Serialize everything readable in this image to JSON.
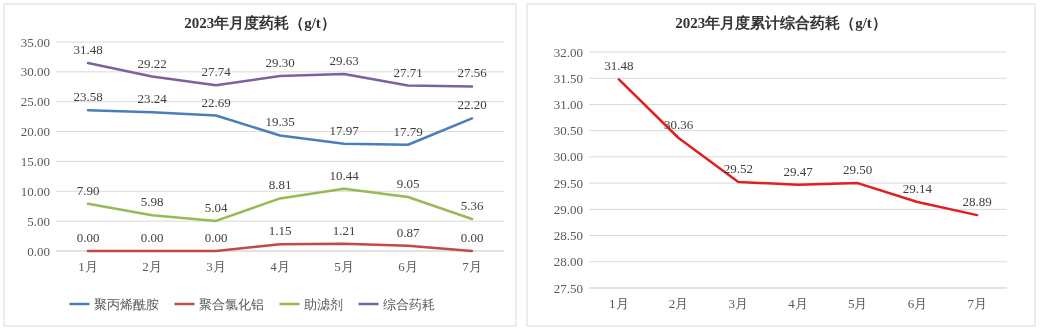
{
  "chart_data": [
    {
      "type": "line",
      "title": "2023年月度药耗（g/t）",
      "categories": [
        "1月",
        "2月",
        "3月",
        "4月",
        "5月",
        "6月",
        "7月"
      ],
      "series": [
        {
          "name": "聚丙烯酰胺",
          "color": "#4a7ebb",
          "values": [
            23.58,
            23.24,
            22.69,
            19.35,
            17.97,
            17.79,
            22.2
          ],
          "value_labels": [
            "23.58",
            "23.24",
            "22.69",
            "19.35",
            "17.97",
            "17.79",
            "22.20"
          ]
        },
        {
          "name": "聚合氯化铝",
          "color": "#be4b48",
          "values": [
            0,
            0,
            0,
            1.15,
            1.21,
            0.87,
            0
          ],
          "value_labels": [
            "0.00",
            "0.00",
            "0.00",
            "1.15",
            "1.21",
            "0.87",
            "0.00"
          ]
        },
        {
          "name": "助滤剂",
          "color": "#98b954",
          "values": [
            7.9,
            5.98,
            5.04,
            8.81,
            10.44,
            9.05,
            5.36
          ],
          "value_labels": [
            "7.90",
            "5.98",
            "5.04",
            "8.81",
            "10.44",
            "9.05",
            "5.36"
          ]
        },
        {
          "name": "综合药耗",
          "color": "#7d60a0",
          "values": [
            31.48,
            29.22,
            27.74,
            29.3,
            29.63,
            27.71,
            27.56
          ],
          "value_labels": [
            "31.48",
            "29.22",
            "27.74",
            "29.30",
            "29.63",
            "27.71",
            "27.56"
          ]
        }
      ],
      "ylim": [
        0,
        35
      ],
      "yticks": [
        {
          "value": 0,
          "label": "0.00"
        },
        {
          "value": 5,
          "label": "5.00"
        },
        {
          "value": 10,
          "label": "10.00"
        },
        {
          "value": 15,
          "label": "15.00"
        },
        {
          "value": 20,
          "label": "20.00"
        },
        {
          "value": 25,
          "label": "25.00"
        },
        {
          "value": 30,
          "label": "30.00"
        },
        {
          "value": 35,
          "label": "35.00"
        }
      ],
      "grid": "y",
      "legend": "bottom"
    },
    {
      "type": "line",
      "title": "2023年月度累计综合药耗（g/t）",
      "categories": [
        "1月",
        "2月",
        "3月",
        "4月",
        "5月",
        "6月",
        "7月"
      ],
      "series": [
        {
          "color": "#e02020",
          "values": [
            31.48,
            30.36,
            29.52,
            29.47,
            29.5,
            29.14,
            28.89
          ],
          "value_labels": [
            "31.48",
            "30.36",
            "29.52",
            "29.47",
            "29.50",
            "29.14",
            "28.89"
          ]
        }
      ],
      "ylim": [
        27.5,
        32
      ],
      "yticks": [
        {
          "value": 27.5,
          "label": "27.50"
        },
        {
          "value": 28,
          "label": "28.00"
        },
        {
          "value": 28.5,
          "label": "28.50"
        },
        {
          "value": 29,
          "label": "29.00"
        },
        {
          "value": 29.5,
          "label": "29.50"
        },
        {
          "value": 30,
          "label": "30.00"
        },
        {
          "value": 30.5,
          "label": "30.50"
        },
        {
          "value": 31,
          "label": "31.00"
        },
        {
          "value": 31.5,
          "label": "31.50"
        },
        {
          "value": 32,
          "label": "32.00"
        }
      ],
      "grid": "y"
    }
  ]
}
